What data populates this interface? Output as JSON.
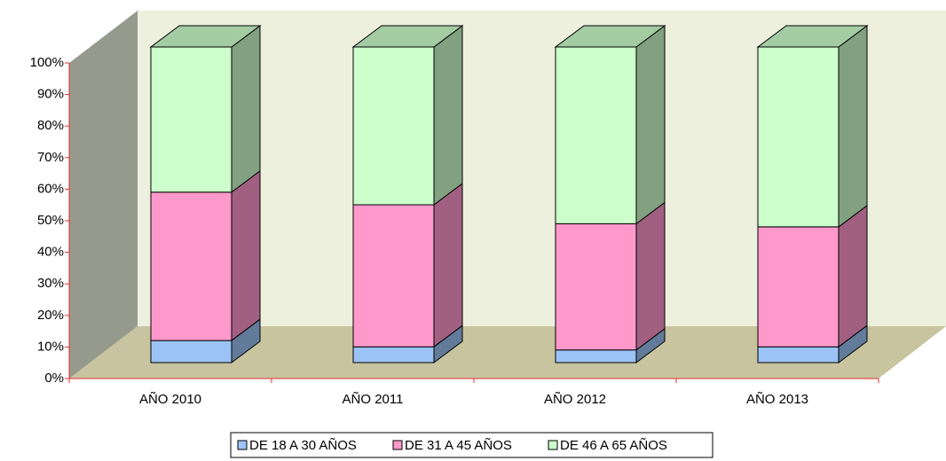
{
  "chart_data": {
    "type": "bar3d_stacked",
    "categories": [
      "AÑO 2010",
      "AÑO 2011",
      "AÑO 2012",
      "AÑO 2013"
    ],
    "series": [
      {
        "name": "DE 18 A 30 AÑOS",
        "color": "#9cc3f5",
        "values": [
          7,
          5,
          4,
          5
        ]
      },
      {
        "name": "DE 31 A 45 AÑOS",
        "color": "#ff99cc",
        "values": [
          47,
          45,
          40,
          38
        ]
      },
      {
        "name": "DE 46 A 65 AÑOS",
        "color": "#ccffcc",
        "values": [
          46,
          50,
          56,
          57
        ]
      }
    ],
    "ylim": [
      0,
      100
    ],
    "yticks": [
      {
        "value": 0,
        "label": "0%"
      },
      {
        "value": 10,
        "label": "10%"
      },
      {
        "value": 20,
        "label": "20%"
      },
      {
        "value": 30,
        "label": "30%"
      },
      {
        "value": 40,
        "label": "40%"
      },
      {
        "value": 50,
        "label": "50%"
      },
      {
        "value": 60,
        "label": "60%"
      },
      {
        "value": 70,
        "label": "70%"
      },
      {
        "value": 80,
        "label": "80%"
      },
      {
        "value": 90,
        "label": "90%"
      },
      {
        "value": 100,
        "label": "100%"
      }
    ]
  }
}
